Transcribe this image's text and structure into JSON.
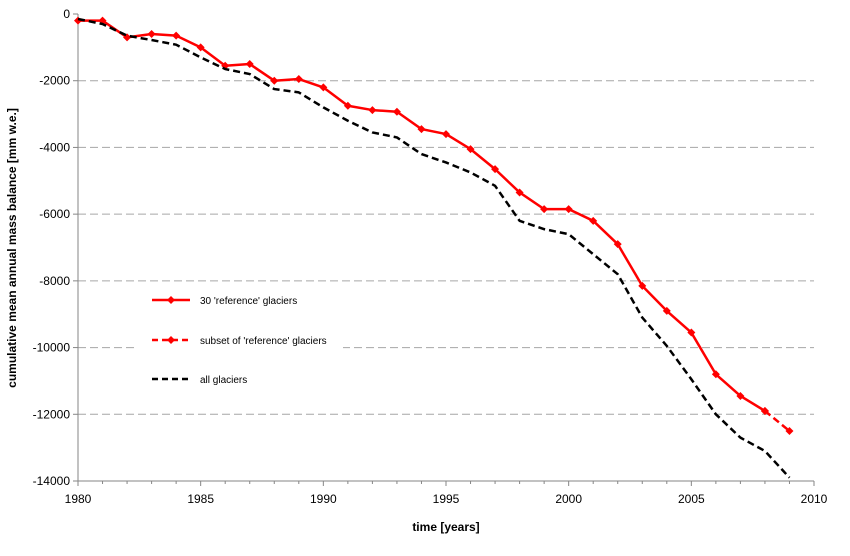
{
  "chart_data": {
    "type": "line",
    "title": "",
    "xlabel": "time [years]",
    "ylabel": "cumulative mean annual mass balance [mm w.e.]",
    "xlim": [
      1980,
      2010
    ],
    "ylim": [
      -14000,
      0
    ],
    "x_ticks": [
      "1980",
      "1985",
      "1990",
      "1995",
      "2000",
      "2005",
      "2010"
    ],
    "y_ticks": [
      "0",
      "-2000",
      "-4000",
      "-6000",
      "-8000",
      "-10000",
      "-12000",
      "-14000"
    ],
    "grid": "horizontal dashed",
    "legend_position": "left-center",
    "series": [
      {
        "name": "30 'reference' glaciers",
        "style": "solid-diamond",
        "color": "#ff0000",
        "x": [
          1980,
          1981,
          1982,
          1983,
          1984,
          1985,
          1986,
          1987,
          1988,
          1989,
          1990,
          1991,
          1992,
          1993,
          1994,
          1995,
          1996,
          1997,
          1998,
          1999,
          2000,
          2001,
          2002,
          2003,
          2004,
          2005,
          2006,
          2007,
          2008
        ],
        "y": [
          -200,
          -200,
          -700,
          -600,
          -650,
          -1000,
          -1550,
          -1500,
          -2000,
          -1950,
          -2200,
          -2750,
          -2880,
          -2930,
          -3450,
          -3600,
          -4050,
          -4650,
          -5350,
          -5850,
          -5850,
          -6200,
          -6900,
          -8150,
          -8900,
          -9550,
          -10800,
          -11450,
          -11900
        ]
      },
      {
        "name": "subset of 'reference' glaciers",
        "style": "dashed-diamond",
        "color": "#ff0000",
        "x": [
          2008,
          2009
        ],
        "y": [
          -11900,
          -12500
        ]
      },
      {
        "name": "all glaciers",
        "style": "dashed",
        "color": "#000000",
        "x": [
          1980,
          1981,
          1982,
          1983,
          1984,
          1985,
          1986,
          1987,
          1988,
          1989,
          1990,
          1991,
          1992,
          1993,
          1994,
          1995,
          1996,
          1997,
          1998,
          1999,
          2000,
          2001,
          2002,
          2003,
          2004,
          2005,
          2006,
          2007,
          2008,
          2009
        ],
        "y": [
          -150,
          -300,
          -650,
          -780,
          -920,
          -1300,
          -1650,
          -1800,
          -2250,
          -2350,
          -2800,
          -3200,
          -3550,
          -3700,
          -4200,
          -4450,
          -4750,
          -5150,
          -6200,
          -6450,
          -6600,
          -7200,
          -7800,
          -9100,
          -9950,
          -10950,
          -12000,
          -12700,
          -13100,
          -13900
        ]
      }
    ]
  }
}
